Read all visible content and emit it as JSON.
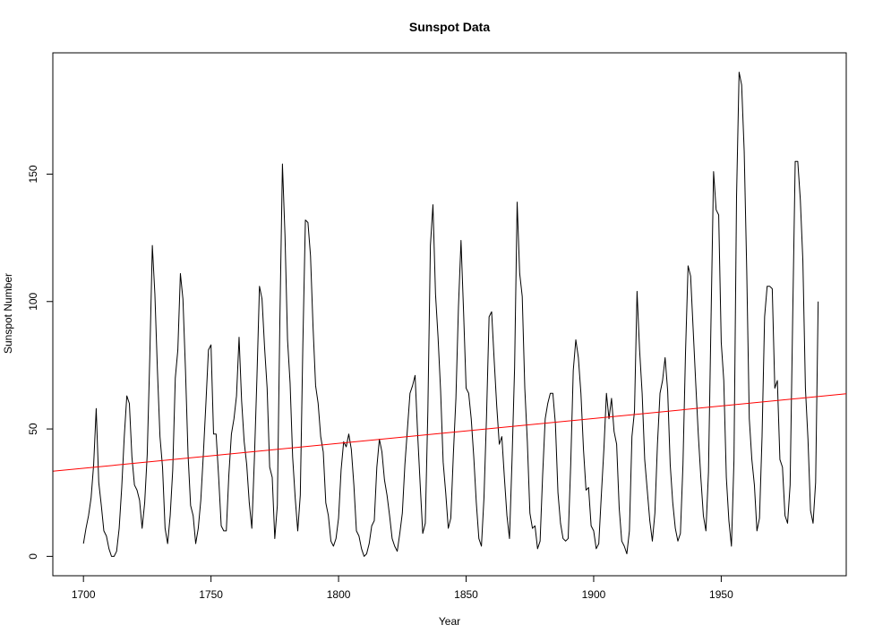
{
  "chart_data": {
    "type": "line",
    "title": "Sunspot Data",
    "xlabel": "Year",
    "ylabel": "Sunspot Number",
    "xlim": [
      1688.0,
      1999.0
    ],
    "ylim": [
      -7.6,
      197.6
    ],
    "x_ticks": [
      1700,
      1750,
      1800,
      1850,
      1900,
      1950
    ],
    "y_ticks": [
      0,
      50,
      100,
      150
    ],
    "grid": false,
    "series": [
      {
        "color": "#000000",
        "x_start": 1700,
        "x_step": 1,
        "values": [
          5,
          11,
          16,
          23,
          36,
          58,
          29,
          20,
          10,
          8,
          3,
          0,
          0,
          2,
          11,
          27,
          47,
          63,
          60,
          39,
          28,
          26,
          22,
          11,
          21,
          40,
          78,
          122,
          103,
          73,
          47,
          35,
          11,
          5,
          16,
          34,
          70,
          81,
          111,
          101,
          73,
          40,
          20,
          16,
          5,
          11,
          22,
          40,
          60,
          81,
          83,
          48,
          48,
          31,
          12,
          10,
          10,
          32,
          48,
          54,
          63,
          86,
          61,
          45,
          36,
          21,
          11,
          38,
          70,
          106,
          101,
          82,
          66,
          35,
          31,
          7,
          20,
          93,
          154,
          126,
          85,
          68,
          39,
          23,
          10,
          24,
          83,
          132,
          131,
          118,
          90,
          67,
          60,
          47,
          41,
          21,
          16,
          6,
          4,
          7,
          15,
          34,
          45,
          43,
          48,
          42,
          28,
          10,
          8,
          3,
          0,
          1,
          5,
          12,
          14,
          35,
          46,
          41,
          30,
          24,
          16,
          7,
          4,
          2,
          9,
          17,
          36,
          50,
          64,
          67,
          71,
          48,
          28,
          9,
          13,
          57,
          122,
          138,
          103,
          86,
          65,
          37,
          25,
          11,
          15,
          40,
          62,
          98,
          124,
          96,
          66,
          64,
          54,
          39,
          21,
          7,
          4,
          23,
          55,
          94,
          96,
          77,
          59,
          44,
          47,
          31,
          16,
          7,
          38,
          74,
          139,
          111,
          102,
          66,
          45,
          17,
          11,
          12,
          3,
          6,
          32,
          54,
          60,
          64,
          64,
          52,
          25,
          13,
          7,
          6,
          7,
          36,
          73,
          85,
          78,
          64,
          42,
          26,
          27,
          12,
          10,
          3,
          5,
          24,
          42,
          64,
          54,
          62,
          49,
          44,
          19,
          6,
          4,
          1,
          10,
          47,
          57,
          104,
          81,
          64,
          38,
          26,
          14,
          6,
          17,
          44,
          64,
          69,
          78,
          65,
          36,
          21,
          11,
          6,
          9,
          36,
          80,
          114,
          110,
          89,
          68,
          48,
          31,
          16,
          10,
          33,
          93,
          151,
          136,
          134,
          84,
          69,
          31,
          14,
          4,
          38,
          141,
          190,
          185,
          159,
          112,
          54,
          38,
          28,
          10,
          15,
          47,
          94,
          106,
          106,
          105,
          66,
          69,
          38,
          35,
          16,
          13,
          28,
          93,
          155,
          155,
          140,
          116,
          66,
          46,
          18,
          13,
          29,
          100
        ]
      },
      {
        "color": "#ff0000",
        "x": [
          1688.0,
          1999.0
        ],
        "y": [
          33.4,
          63.8
        ]
      }
    ]
  }
}
